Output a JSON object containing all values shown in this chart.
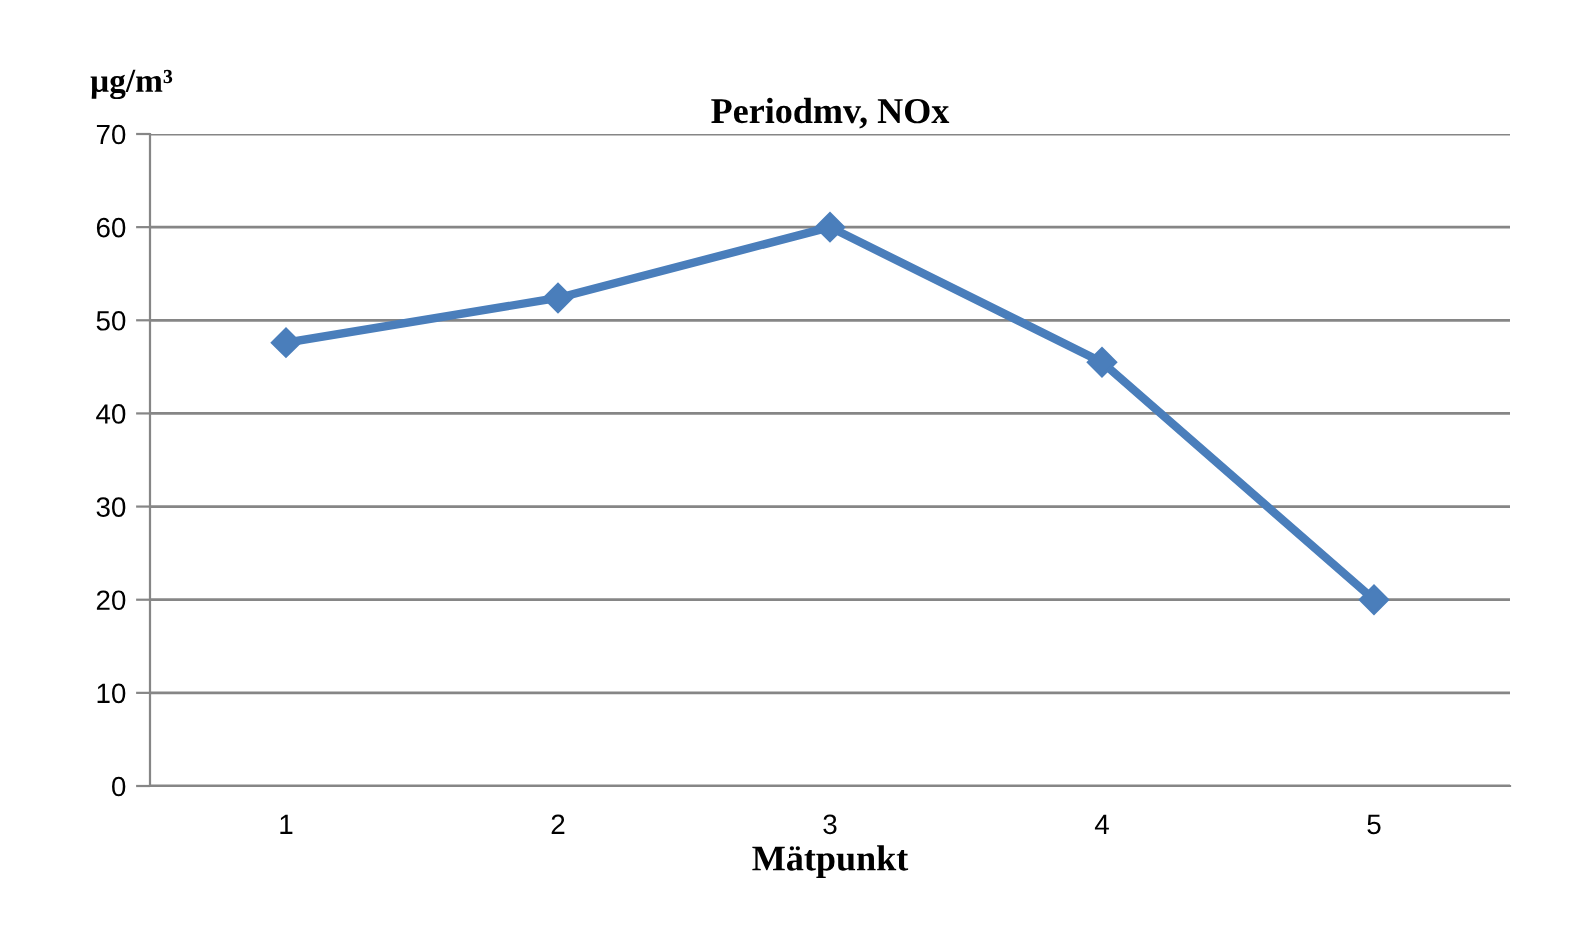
{
  "chart_data": {
    "type": "line",
    "title": "Periodmv, NOx",
    "xlabel": "Mätpunkt",
    "ylabel": "µg/m³",
    "categories": [
      "1",
      "2",
      "3",
      "4",
      "5"
    ],
    "series": [
      {
        "color": "#4a7ebb",
        "values": [
          47.6,
          52.4,
          60,
          45.5,
          20
        ]
      }
    ],
    "ylim": [
      0,
      70
    ],
    "yticks": [
      0,
      10,
      20,
      30,
      40,
      50,
      60,
      70
    ],
    "grid": "y",
    "marker": "diamond",
    "line_style": "solid",
    "legend": false
  }
}
